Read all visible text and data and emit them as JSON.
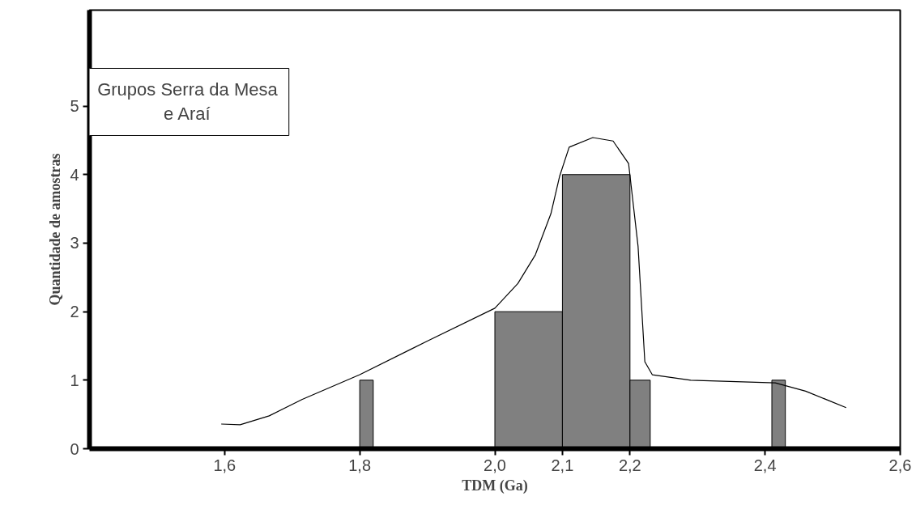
{
  "chart_data": {
    "type": "histogram",
    "title": "Grupos Serra da Mesa\ne Araí",
    "xlabel": "TDM (Ga)",
    "ylabel": "Quantidade de amostras",
    "bins": [
      1.8,
      1.82,
      2.0,
      2.1,
      2.2,
      2.23,
      2.41,
      2.43
    ],
    "values": [
      1,
      0,
      2,
      4,
      1,
      0,
      1
    ],
    "color": "#808080",
    "series": [
      {
        "type": "line",
        "color": "#000000",
        "x": [
          1.595,
          1.623,
          1.666,
          1.715,
          1.8,
          1.9,
          2.0,
          2.034,
          2.06,
          2.083,
          2.096,
          2.11,
          2.145,
          2.175,
          2.198,
          2.212,
          2.222,
          2.233,
          2.29,
          2.415,
          2.46,
          2.52
        ],
        "values": [
          0.36,
          0.35,
          0.48,
          0.72,
          1.08,
          1.57,
          2.05,
          2.41,
          2.83,
          3.43,
          3.98,
          4.4,
          4.54,
          4.49,
          4.16,
          2.95,
          1.27,
          1.08,
          1.0,
          0.96,
          0.84,
          0.6
        ]
      }
    ],
    "xlim": [
      1.4,
      2.6
    ],
    "ylim": [
      0,
      6.4
    ],
    "xticks": [
      {
        "value": 1.6,
        "label": "1,6"
      },
      {
        "value": 1.8,
        "label": "1,8"
      },
      {
        "value": 2.0,
        "label": "2,0"
      },
      {
        "value": 2.1,
        "label": "2,1"
      },
      {
        "value": 2.2,
        "label": "2,2"
      },
      {
        "value": 2.4,
        "label": "2,4"
      },
      {
        "value": 2.6,
        "label": "2,6"
      }
    ],
    "yticks": [
      0,
      1,
      2,
      3,
      4,
      5
    ],
    "grid": false
  }
}
